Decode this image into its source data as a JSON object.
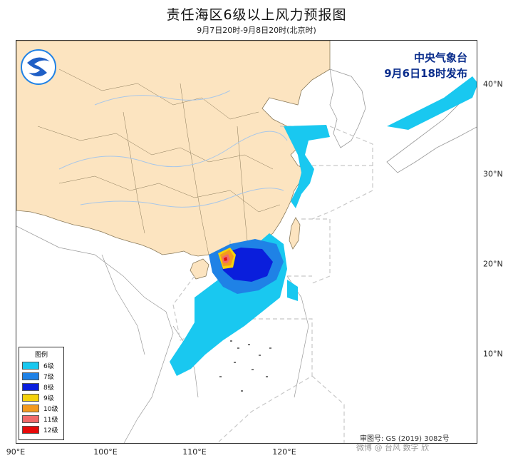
{
  "title": "责任海区6级以上风力预报图",
  "subtitle": "9月7日20时-9月8日20时(北京时)",
  "agency": {
    "line1": "中央气象台",
    "line2": "9月6日18时发布"
  },
  "approval": "审图号: GS (2019) 3082号",
  "watermark": "微博 @ 台风 数字 欣",
  "lat_ticks": [
    "40°N",
    "30°N",
    "20°N",
    "10°N"
  ],
  "lon_ticks": [
    "90°E",
    "100°E",
    "110°E",
    "120°E"
  ],
  "legend": {
    "title": "图例",
    "items": [
      {
        "label": "6级",
        "color": "#19c8f0"
      },
      {
        "label": "7级",
        "color": "#1f82e6"
      },
      {
        "label": "8级",
        "color": "#0a1edc"
      },
      {
        "label": "9级",
        "color": "#f5d20a"
      },
      {
        "label": "10级",
        "color": "#f39a1e"
      },
      {
        "label": "11级",
        "color": "#f06a6a"
      },
      {
        "label": "12级",
        "color": "#e60a0a"
      }
    ]
  },
  "colors": {
    "land_china": "#fce4c0",
    "sea": "#ffffff",
    "border": "#8a7a5a",
    "river": "#a9c7e8"
  }
}
